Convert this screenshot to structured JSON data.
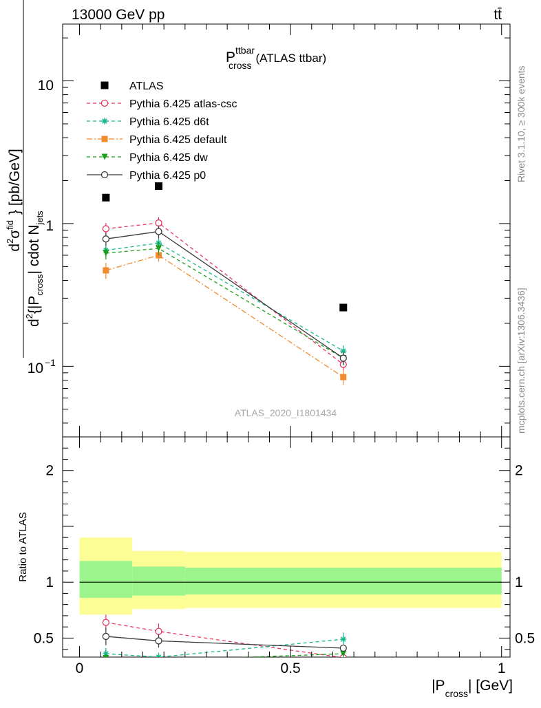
{
  "header": {
    "left": "13000 GeV pp",
    "right": "tt̄"
  },
  "side_labels": {
    "rivet": "Rivet 3.1.10, ≥ 300k events",
    "mcplots": "mcplots.cern.ch [arXiv:1306.3436]"
  },
  "watermark": "ATLAS_2020_I1801434",
  "chart_data": [
    {
      "type": "line",
      "title": "P_cross^ttbar (ATLAS ttbar)",
      "title_main": "P",
      "title_sup": "ttbar",
      "title_sub": "cross",
      "title_rest": "(ATLAS ttbar)",
      "ylabel": "d²σ^fid / d²{|P_cross| cdot N_jets} [pb/GeV]",
      "ylabel_parts": {
        "d1": "d",
        "sigma": "σ",
        "fid": "fid",
        "d2": "d",
        "frac_rest": "{|P",
        "cross": "cross",
        "cdot": "| cdot N",
        "jets": "jets",
        "unit": "} [pb/GeV]"
      },
      "yscale": "log",
      "xlim": [
        -0.04,
        1.02
      ],
      "ylim": [
        0.032,
        25
      ],
      "ytick_labels": {
        "tenth_base": "10",
        "tenth_exp": "−1",
        "one": "1",
        "ten": "10"
      },
      "legend_position": "top-left",
      "data_series": {
        "name": "ATLAS",
        "x": [
          0.0625,
          0.1875,
          0.625
        ],
        "y": [
          1.52,
          1.83,
          0.258
        ]
      },
      "series": [
        {
          "name": "Pythia 6.425 atlas-csc",
          "color": "#e8365e",
          "marker": "open-circle",
          "dash": "5,4",
          "x": [
            0.0625,
            0.1875,
            0.625
          ],
          "y": [
            0.92,
            1.01,
            0.103
          ],
          "err": [
            0.09,
            0.1,
            0.01
          ]
        },
        {
          "name": "Pythia 6.425 d6t",
          "color": "#17b890",
          "marker": "star",
          "dash": "5,4",
          "x": [
            0.0625,
            0.1875,
            0.625
          ],
          "y": [
            0.65,
            0.73,
            0.128
          ],
          "err": [
            0.07,
            0.07,
            0.012
          ]
        },
        {
          "name": "Pythia 6.425 default",
          "color": "#f28a2f",
          "marker": "square",
          "dash": "8,3,2,3",
          "x": [
            0.0625,
            0.1875,
            0.625
          ],
          "y": [
            0.47,
            0.6,
            0.084
          ],
          "err": [
            0.06,
            0.06,
            0.01
          ]
        },
        {
          "name": "Pythia 6.425 dw",
          "color": "#1a9e1a",
          "marker": "triangle-down",
          "dash": "5,4",
          "x": [
            0.0625,
            0.1875,
            0.625
          ],
          "y": [
            0.62,
            0.67,
            0.114
          ],
          "err": [
            0.06,
            0.07,
            0.012
          ]
        },
        {
          "name": "Pythia 6.425 p0",
          "color": "#3a3a3a",
          "marker": "open-circle",
          "dash": "",
          "x": [
            0.0625,
            0.1875,
            0.625
          ],
          "y": [
            0.78,
            0.88,
            0.114
          ],
          "err": [
            0.08,
            0.09,
            0.012
          ]
        }
      ]
    },
    {
      "type": "line",
      "ylabel": "Ratio to ATLAS",
      "xlabel": "|P_cross| [GeV]",
      "xlabel_parts": {
        "a": "|P",
        "sub": "cross",
        "b": "| [GeV]"
      },
      "xlim": [
        -0.04,
        1.02
      ],
      "ylim": [
        0.33,
        2.3
      ],
      "x_ticks": [
        0,
        0.5,
        1
      ],
      "x_tick_labels": [
        "0",
        "0.5",
        "1"
      ],
      "y_ticks": [
        0.5,
        1,
        2
      ],
      "y_tick_labels": [
        "0.5",
        "1",
        "2"
      ],
      "bands": [
        {
          "x0": 0.0,
          "x1": 0.125,
          "yellow": [
            0.71,
            1.4
          ],
          "green": [
            0.86,
            1.19
          ]
        },
        {
          "x0": 0.125,
          "x1": 0.25,
          "yellow": [
            0.76,
            1.28
          ],
          "green": [
            0.88,
            1.14
          ]
        },
        {
          "x0": 0.25,
          "x1": 1.0,
          "yellow": [
            0.77,
            1.27
          ],
          "green": [
            0.89,
            1.13
          ]
        }
      ],
      "series": [
        {
          "name": "Pythia 6.425 atlas-csc",
          "x": [
            0.0625,
            0.1875,
            0.625
          ],
          "y": [
            0.64,
            0.56,
            0.325
          ],
          "err": [
            0.07,
            0.07,
            0.03
          ]
        },
        {
          "name": "Pythia 6.425 d6t",
          "x": [
            0.0625,
            0.1875,
            0.625
          ],
          "y": [
            0.36,
            0.33,
            0.49
          ],
          "err": [
            0.05,
            0.04,
            0.06
          ]
        },
        {
          "name": "Pythia 6.425 dw",
          "x": [
            0.0625,
            0.1875,
            0.625
          ],
          "y": [
            0.32,
            0.3,
            0.36
          ],
          "err": [
            0.04,
            0.04,
            0.04
          ]
        },
        {
          "name": "Pythia 6.425 p0",
          "x": [
            0.0625,
            0.1875,
            0.625
          ],
          "y": [
            0.515,
            0.475,
            0.41
          ],
          "err": [
            0.08,
            0.06,
            0.03
          ]
        }
      ]
    }
  ]
}
